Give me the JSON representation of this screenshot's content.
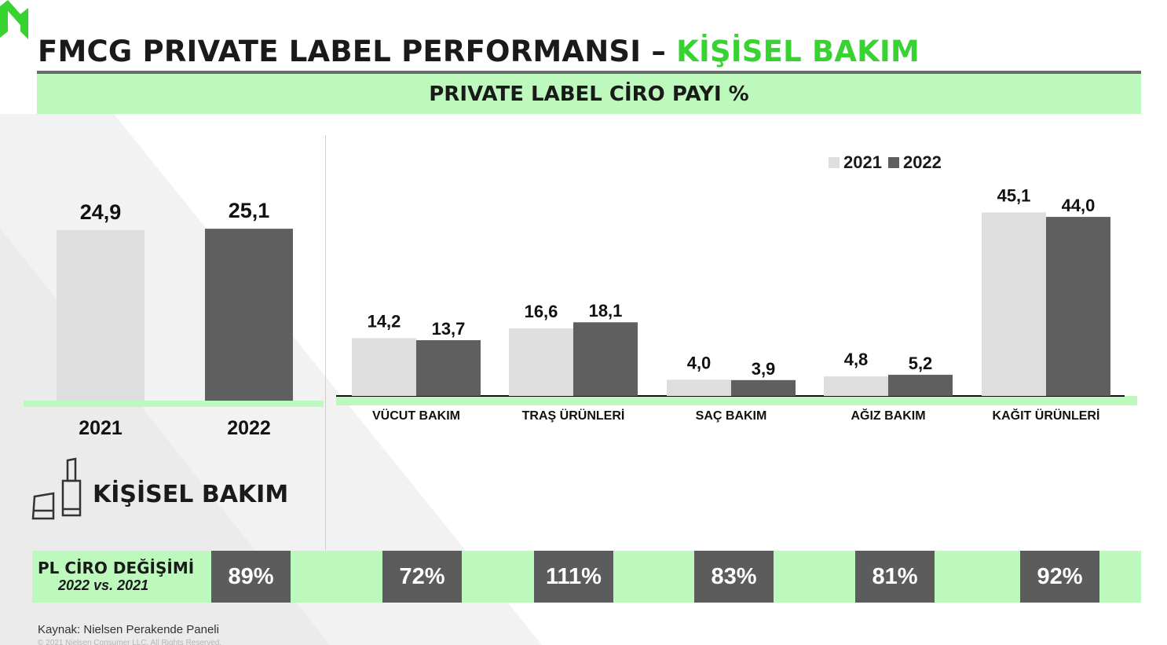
{
  "title": {
    "main": "FMCG PRIVATE LABEL PERFORMANSI – ",
    "accent": "KİŞİSEL BAKIM"
  },
  "banner": "PRIVATE LABEL CİRO PAYI %",
  "colors": {
    "y2021": "#dedede",
    "y2022": "#5f5f5f",
    "accent": "#36d331",
    "band": "#bdf8bd"
  },
  "chart_data": [
    {
      "type": "bar",
      "categories": [
        "2021",
        "2022"
      ],
      "values": [
        24.9,
        25.1
      ],
      "value_labels": [
        "24,9",
        "25,1"
      ],
      "ylim": [
        0,
        50
      ],
      "grid": false
    },
    {
      "type": "bar",
      "categories": [
        "VÜCUT BAKIM",
        "TRAŞ ÜRÜNLERİ",
        "SAÇ BAKIM",
        "AĞIZ BAKIM",
        "KAĞIT ÜRÜNLERİ"
      ],
      "series": [
        {
          "name": "2021",
          "values": [
            14.2,
            16.6,
            4.0,
            4.8,
            45.1
          ],
          "labels": [
            "14,2",
            "16,6",
            "4,0",
            "4,8",
            "45,1"
          ]
        },
        {
          "name": "2022",
          "values": [
            13.7,
            18.1,
            3.9,
            5.2,
            44.0
          ],
          "labels": [
            "13,7",
            "18,1",
            "3,9",
            "5,2",
            "44,0"
          ]
        }
      ],
      "ylim": [
        0,
        50
      ],
      "legend": "top-right",
      "grid": false
    }
  ],
  "category_label": "KİŞİSEL BAKIM",
  "change": {
    "label_line1": "PL CİRO DEĞİŞİMİ",
    "label_line2": "2022 vs. 2021",
    "values": [
      "89%",
      "72%",
      "111%",
      "83%",
      "81%",
      "92%"
    ]
  },
  "source": "Kaynak: Nielsen Perakende Paneli",
  "copyright": "© 2021 Nielsen Consumer LLC. All Rights Reserved."
}
